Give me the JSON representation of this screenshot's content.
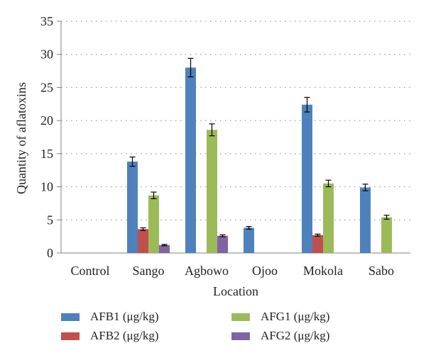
{
  "chart_data": {
    "type": "bar",
    "title": "",
    "xlabel": "Location",
    "ylabel": "Quantity of aflatoxins",
    "ylim": [
      0,
      35
    ],
    "yticks": [
      0,
      5,
      10,
      15,
      20,
      25,
      30,
      35
    ],
    "grid": "horizontal dotted",
    "legend_position": "bottom",
    "categories": [
      "Control",
      "Sango",
      "Agbowo",
      "Ojoo",
      "Mokola",
      "Sabo"
    ],
    "series": [
      {
        "name": "AFB1 (μg/kg)",
        "color": "#4f81bd",
        "values": [
          0,
          13.8,
          28.0,
          3.8,
          22.4,
          9.9
        ],
        "errors": [
          0,
          0.7,
          1.4,
          0.2,
          1.1,
          0.5
        ]
      },
      {
        "name": "AFB2 (μg/kg)",
        "color": "#c0504d",
        "values": [
          0,
          3.6,
          0,
          0,
          2.7,
          0
        ],
        "errors": [
          0,
          0.2,
          0,
          0,
          0.15,
          0
        ]
      },
      {
        "name": "AFG1 (μg/kg)",
        "color": "#9bbb59",
        "values": [
          0,
          8.7,
          18.6,
          0,
          10.5,
          5.4
        ],
        "errors": [
          0,
          0.5,
          0.9,
          0,
          0.5,
          0.3
        ]
      },
      {
        "name": "AFG2 (μg/kg)",
        "color": "#8064a2",
        "values": [
          0,
          1.2,
          2.6,
          0,
          0,
          0
        ],
        "errors": [
          0,
          0.1,
          0.15,
          0,
          0,
          0
        ]
      }
    ]
  }
}
